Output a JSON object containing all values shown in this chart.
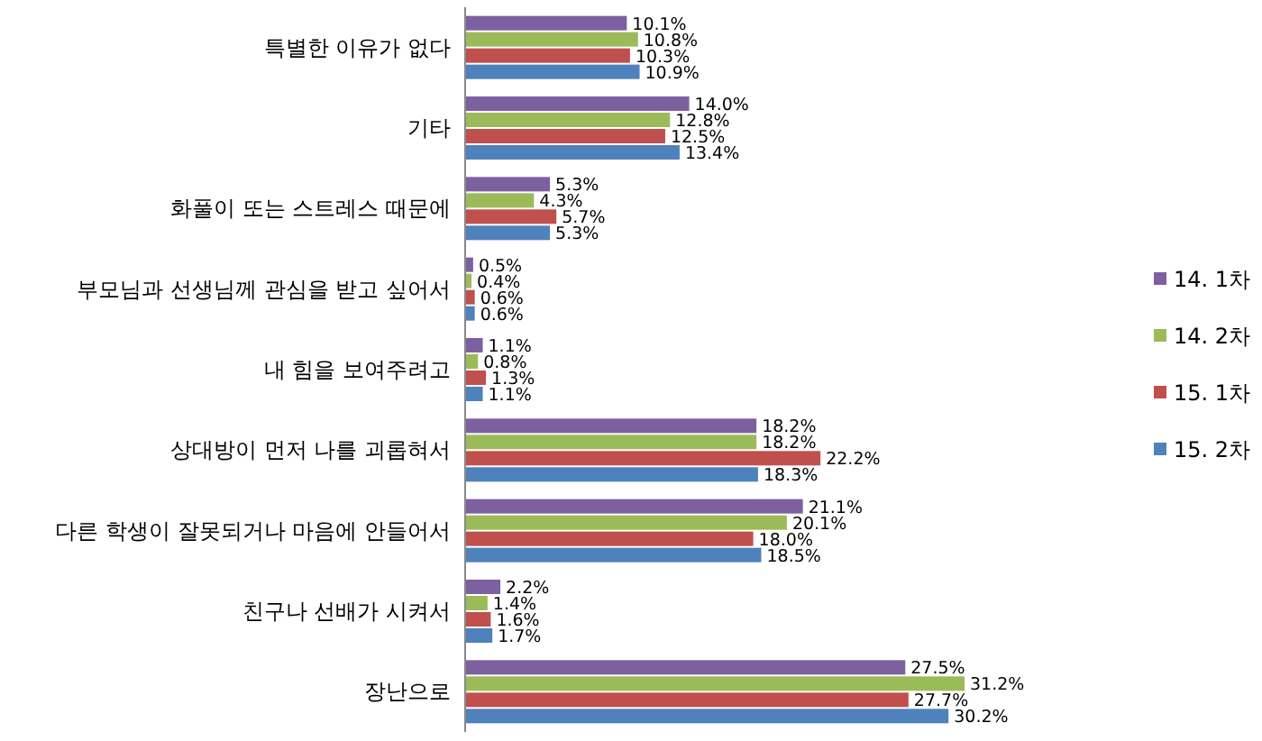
{
  "chart_data": {
    "type": "bar",
    "orientation": "horizontal",
    "legend": "right",
    "categories": [
      "특별한 이유가 없다",
      "기타",
      "화풀이 또는 스트레스 때문에",
      "부모님과 선생님께 관심을 받고 싶어서",
      "내 힘을 보여주려고",
      "상대방이 먼저 나를 괴롭혀서",
      "다른 학생이 잘못되거나 마음에 안들어서",
      "친구나 선배가 시켜서",
      "장난으로"
    ],
    "series": [
      {
        "name": "14. 1차",
        "color": "#7d60a0",
        "values": [
          10.1,
          14.0,
          5.3,
          0.5,
          1.1,
          18.2,
          21.1,
          2.2,
          27.5
        ],
        "value_labels": [
          "10.1%",
          "14.0%",
          "5.3%",
          "0.5%",
          "1.1%",
          "18.2%",
          "21.1%",
          "2.2%",
          "27.5%"
        ]
      },
      {
        "name": "14. 2차",
        "color": "#9bbb59",
        "values": [
          10.8,
          12.8,
          4.3,
          0.4,
          0.8,
          18.2,
          20.1,
          1.4,
          31.2
        ],
        "value_labels": [
          "10.8%",
          "12.8%",
          "4.3%",
          "0.4%",
          "0.8%",
          "18.2%",
          "20.1%",
          "1.4%",
          "31.2%"
        ]
      },
      {
        "name": "15. 1차",
        "color": "#c0504d",
        "values": [
          10.3,
          12.5,
          5.7,
          0.6,
          1.3,
          22.2,
          18.0,
          1.6,
          27.7
        ],
        "value_labels": [
          "10.3%",
          "12.5%",
          "5.7%",
          "0.6%",
          "1.3%",
          "22.2%",
          "18.0%",
          "1.6%",
          "27.7%"
        ]
      },
      {
        "name": "15. 2차",
        "color": "#4f81bd",
        "values": [
          10.9,
          13.4,
          5.3,
          0.6,
          1.1,
          18.3,
          18.5,
          1.7,
          30.2
        ],
        "value_labels": [
          "10.9%",
          "13.4%",
          "5.3%",
          "0.6%",
          "1.1%",
          "18.3%",
          "18.5%",
          "1.7%",
          "30.2%"
        ]
      }
    ]
  }
}
